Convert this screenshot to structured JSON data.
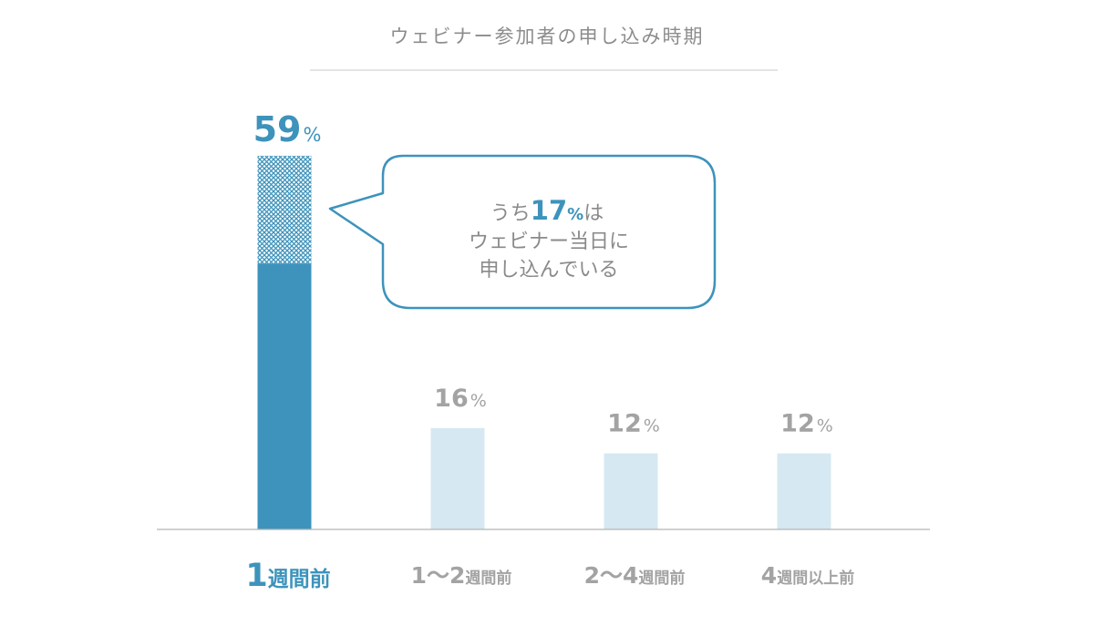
{
  "chart_data": {
    "type": "bar",
    "title": "ウェビナー参加者の申し込み時期",
    "xlabel": "",
    "ylabel": "",
    "ylim": [
      0,
      60
    ],
    "unit": "%",
    "categories": [
      {
        "num": "1",
        "suffix": "週間前"
      },
      {
        "num": "1〜2",
        "suffix": "週間前"
      },
      {
        "num": "2〜4",
        "suffix": "週間前"
      },
      {
        "num": "4",
        "suffix": "週間以上前"
      }
    ],
    "values": [
      59,
      16,
      12,
      12
    ],
    "highlight_index": 0,
    "sub_segment": {
      "category_index": 0,
      "value": 17
    },
    "callout": {
      "line1_prefix": "うち",
      "line1_value": "17",
      "line1_unit": "%",
      "line1_suffix": "は",
      "line2": "ウェビナー当日に",
      "line3": "申し込んでいる"
    },
    "colors": {
      "highlight": "#3d93bb",
      "muted_bar": "#d6e8f1",
      "muted_text": "#a3a3a3",
      "title": "#8c8c8c",
      "axis": "#b5b5b5",
      "callout_border": "#3d93bb"
    }
  }
}
